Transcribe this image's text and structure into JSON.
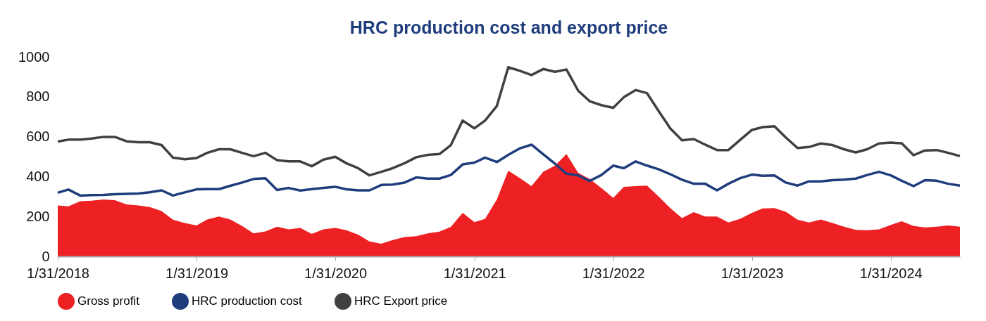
{
  "chart_data": {
    "type": "line",
    "title": "HRC production cost and export price",
    "x": [
      "2018-01-31",
      "2018-02-28",
      "2018-03-31",
      "2018-04-30",
      "2018-05-31",
      "2018-06-30",
      "2018-07-31",
      "2018-08-31",
      "2018-09-30",
      "2018-10-31",
      "2018-11-30",
      "2018-12-31",
      "2019-01-31",
      "2019-02-28",
      "2019-03-31",
      "2019-04-30",
      "2019-05-31",
      "2019-06-30",
      "2019-07-31",
      "2019-08-31",
      "2019-09-30",
      "2019-10-31",
      "2019-11-30",
      "2019-12-31",
      "2020-01-31",
      "2020-02-29",
      "2020-03-31",
      "2020-04-30",
      "2020-05-31",
      "2020-06-30",
      "2020-07-31",
      "2020-08-31",
      "2020-09-30",
      "2020-10-31",
      "2020-11-30",
      "2020-12-31",
      "2021-01-31",
      "2021-02-28",
      "2021-03-31",
      "2021-04-30",
      "2021-05-31",
      "2021-06-30",
      "2021-07-31",
      "2021-08-31",
      "2021-09-30",
      "2021-10-31",
      "2021-11-30",
      "2021-12-31",
      "2022-01-31",
      "2022-02-28",
      "2022-03-31",
      "2022-04-30",
      "2022-05-31",
      "2022-06-30",
      "2022-07-31",
      "2022-08-31",
      "2022-09-30",
      "2022-10-31",
      "2022-11-30",
      "2022-12-31",
      "2023-01-31",
      "2023-02-28",
      "2023-03-31",
      "2023-04-30",
      "2023-05-31",
      "2023-06-30",
      "2023-07-31",
      "2023-08-31",
      "2023-09-30",
      "2023-10-31",
      "2023-11-30",
      "2023-12-31",
      "2024-01-31",
      "2024-02-29",
      "2024-03-31",
      "2024-04-30",
      "2024-05-31",
      "2024-06-30",
      "2024-07-31"
    ],
    "series": [
      {
        "name": "Gross profit",
        "type": "area",
        "color": "#ed2024",
        "values": [
          255,
          251,
          276,
          279,
          285,
          282,
          261,
          255,
          247,
          227,
          184,
          167,
          155,
          185,
          200,
          185,
          152,
          115,
          125,
          149,
          136,
          143,
          113,
          136,
          143,
          131,
          109,
          75,
          63,
          82,
          97,
          101,
          115,
          124,
          148,
          218,
          172,
          188,
          285,
          430,
          392,
          352,
          424,
          455,
          513,
          418,
          388,
          342,
          293,
          349,
          352,
          355,
          299,
          242,
          192,
          222,
          200,
          200,
          170,
          188,
          218,
          240,
          242,
          224,
          184,
          170,
          185,
          167,
          149,
          133,
          131,
          136,
          158,
          176,
          152,
          145,
          149,
          155,
          149
        ]
      },
      {
        "name": "HRC production cost",
        "color": "#1f3d7c",
        "values": [
          319,
          335,
          305,
          307,
          308,
          312,
          313,
          315,
          321,
          331,
          305,
          321,
          336,
          337,
          337,
          354,
          370,
          388,
          392,
          333,
          343,
          330,
          337,
          343,
          349,
          336,
          331,
          331,
          358,
          360,
          370,
          396,
          390,
          390,
          408,
          461,
          470,
          495,
          473,
          509,
          542,
          560,
          512,
          464,
          415,
          406,
          378,
          408,
          455,
          442,
          476,
          455,
          436,
          412,
          384,
          364,
          364,
          331,
          364,
          392,
          410,
          404,
          406,
          370,
          355,
          376,
          376,
          382,
          385,
          390,
          408,
          424,
          406,
          379,
          352,
          382,
          379,
          364,
          355
        ]
      },
      {
        "name": "HRC Export price",
        "color": "#404040",
        "values": [
          576,
          585,
          585,
          591,
          599,
          599,
          577,
          572,
          572,
          558,
          495,
          487,
          493,
          519,
          537,
          537,
          519,
          502,
          519,
          482,
          476,
          476,
          452,
          485,
          499,
          467,
          442,
          406,
          424,
          442,
          467,
          497,
          509,
          513,
          558,
          681,
          642,
          681,
          754,
          948,
          930,
          909,
          939,
          925,
          937,
          830,
          778,
          758,
          745,
          798,
          834,
          818,
          727,
          642,
          582,
          588,
          560,
          533,
          533,
          584,
          634,
          648,
          652,
          596,
          543,
          548,
          566,
          558,
          537,
          521,
          537,
          566,
          570,
          567,
          507,
          531,
          533,
          519,
          503
        ]
      }
    ],
    "xlim": [
      "2018-01-31",
      "2024-07-31"
    ],
    "xticks": [
      {
        "value": "2018-01-31",
        "label": "1/31/2018"
      },
      {
        "value": "2019-01-31",
        "label": "1/31/2019"
      },
      {
        "value": "2020-01-31",
        "label": "1/31/2020"
      },
      {
        "value": "2021-01-31",
        "label": "1/31/2021"
      },
      {
        "value": "2022-01-31",
        "label": "1/31/2022"
      },
      {
        "value": "2023-01-31",
        "label": "1/31/2023"
      },
      {
        "value": "2024-01-31",
        "label": "1/31/2024"
      }
    ],
    "ylim": [
      0,
      1000
    ],
    "yticks": [
      0,
      200,
      400,
      600,
      800,
      1000
    ],
    "grid": false,
    "legend": "bottom",
    "marker": "none",
    "line_style": "solid"
  }
}
